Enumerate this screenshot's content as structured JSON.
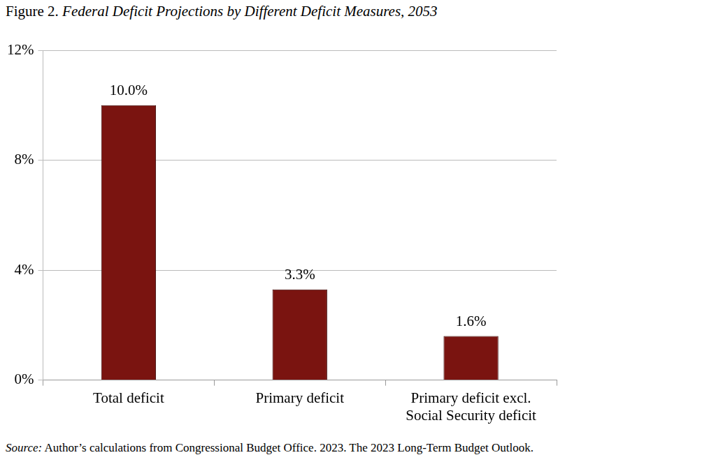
{
  "chart_data": {
    "type": "bar",
    "title": "Figure 2. Federal Deficit Projections by Different Deficit Measures, 2053",
    "source": "Source: Author’s calculations from Congressional Budget Office. 2023. The 2023 Long-Term Budget Outlook.",
    "categories": [
      "Total deficit",
      "Primary deficit",
      "Primary deficit excl.\nSocial Security deficit"
    ],
    "values": [
      10.0,
      3.3,
      1.6
    ],
    "value_labels": [
      "10.0%",
      "3.3%",
      "1.6%"
    ],
    "data_labels": true,
    "color": "#7a1410",
    "ylim": [
      0,
      12
    ],
    "yticks": [
      {
        "value": 0,
        "label": "0%"
      },
      {
        "value": 4,
        "label": "4%"
      },
      {
        "value": 8,
        "label": "8%"
      },
      {
        "value": 12,
        "label": "12%"
      }
    ],
    "grid": true
  }
}
